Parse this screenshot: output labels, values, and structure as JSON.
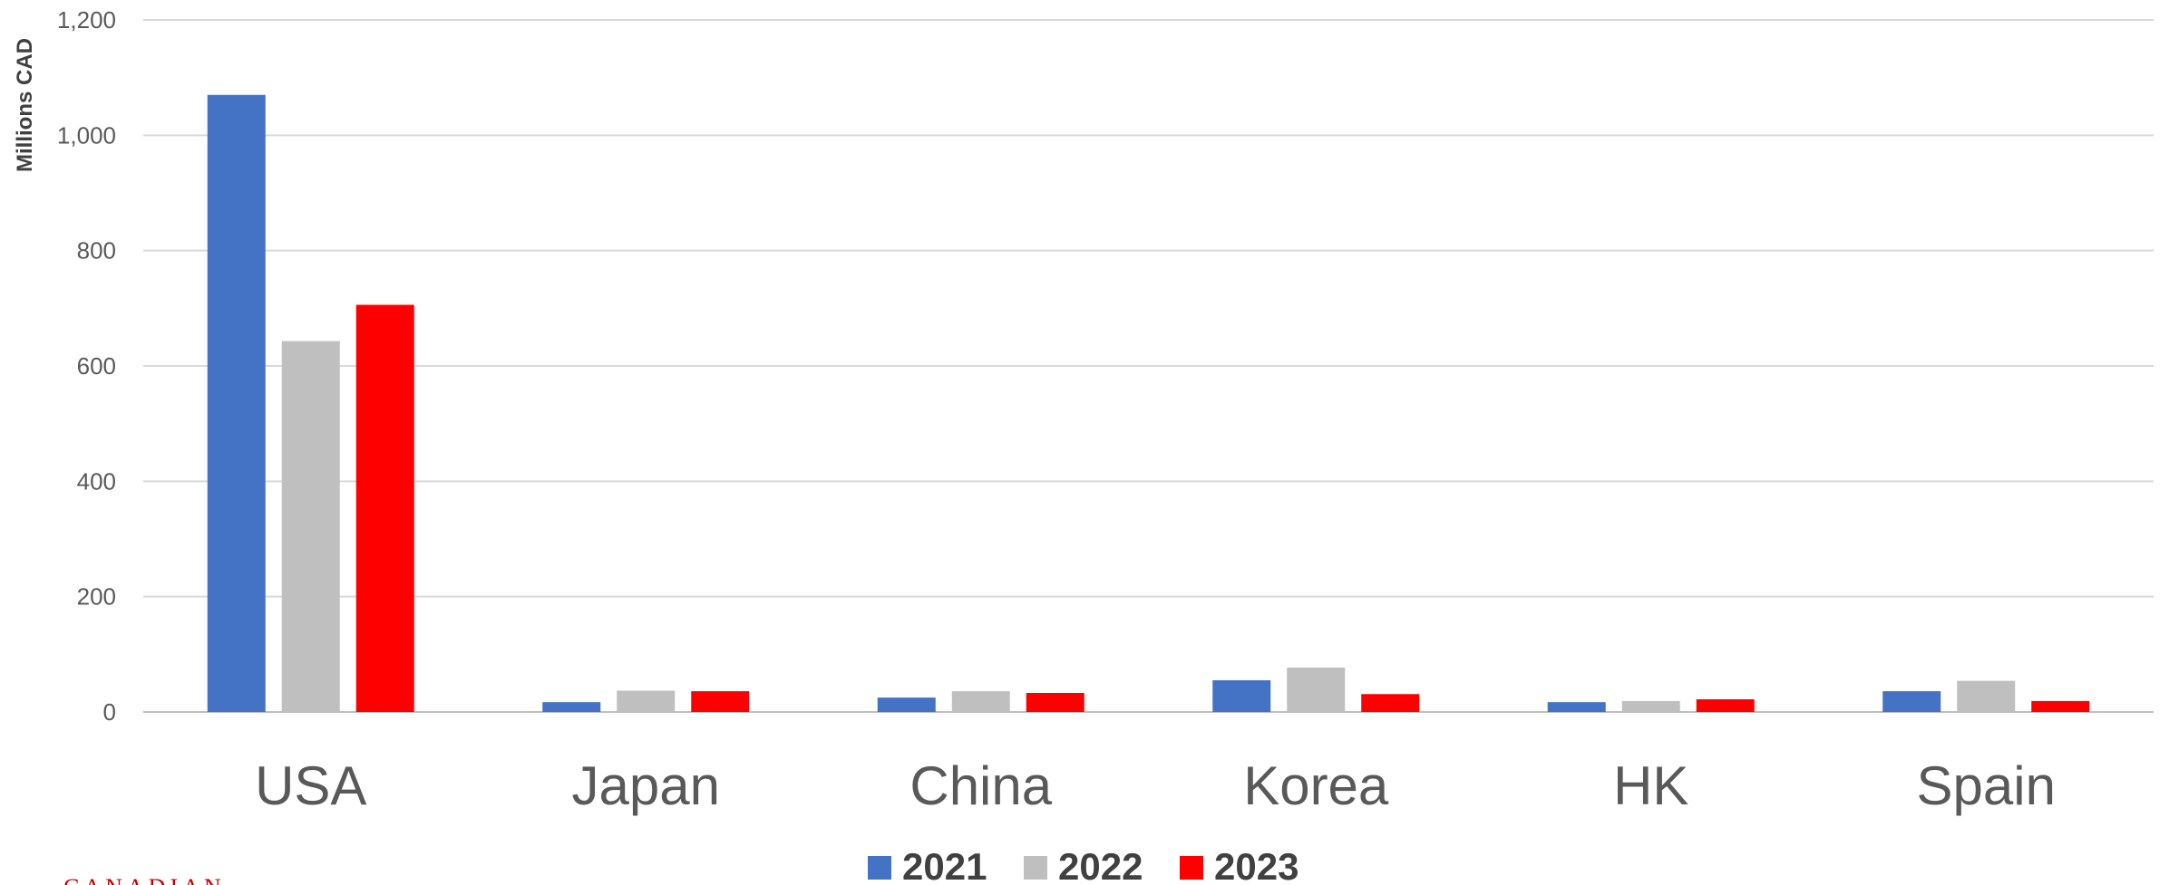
{
  "chart_data": {
    "type": "bar",
    "title": "",
    "xlabel": "",
    "ylabel": "Millions CAD",
    "ylim": [
      0,
      1200
    ],
    "yticks": [
      0,
      200,
      400,
      600,
      800,
      1000,
      1200
    ],
    "ytick_labels": [
      "0",
      "200",
      "400",
      "600",
      "800",
      "1,000",
      "1,200"
    ],
    "grid": true,
    "legend_position": "bottom",
    "categories": [
      "USA",
      "Japan",
      "China",
      "Korea",
      "HK",
      "Spain"
    ],
    "series": [
      {
        "name": "2021",
        "color": "#4472c4",
        "values": [
          1070,
          17,
          25,
          55,
          17,
          36
        ]
      },
      {
        "name": "2022",
        "color": "#bfbfbf",
        "values": [
          643,
          37,
          36,
          77,
          19,
          54
        ]
      },
      {
        "name": "2023",
        "color": "#ff0000",
        "values": [
          706,
          36,
          33,
          31,
          22,
          19
        ]
      }
    ]
  },
  "footer_logo": {
    "text": "CANADIAN"
  }
}
